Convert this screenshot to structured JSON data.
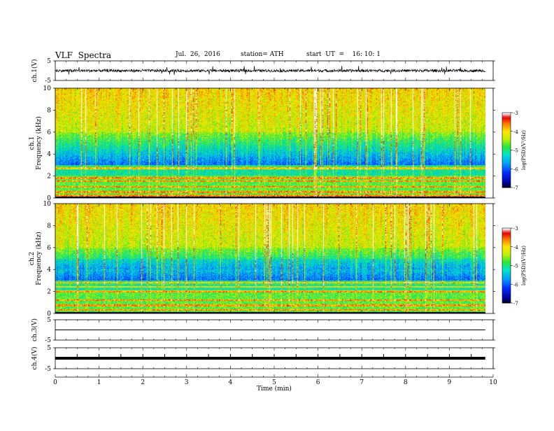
{
  "header": {
    "title": "VLF  Spectra",
    "date": "Jul.  26,  2016",
    "station": "station= ATH",
    "start": "start  UT  =    16: 10: 1"
  },
  "chart_data": [
    {
      "type": "line",
      "panel": "ch.1 waveform",
      "ylabel": "ch.1(V)",
      "ylim": [
        -5,
        5
      ],
      "yticks": [
        "5",
        "-5"
      ],
      "baseline": 0,
      "amplitude_typical": 0.7,
      "spike_amplitude_max": 2.5
    },
    {
      "type": "heatmap",
      "panel": "ch.1 spectrogram",
      "ylabel": "ch.1\nFrequency  (kHz)",
      "ylim": [
        0,
        10
      ],
      "yticks": [
        "0",
        "2",
        "4",
        "6",
        "8",
        "10"
      ],
      "colorbar": {
        "label": "log(PSD)(V²/Hz)",
        "range": [
          -7,
          -3
        ],
        "ticks": [
          "-3",
          "-4",
          "-5",
          "-6",
          "-7"
        ]
      },
      "hum_lines_khz": [
        0.2,
        0.5,
        1.0,
        1.5,
        1.8,
        2.7
      ]
    },
    {
      "type": "heatmap",
      "panel": "ch.2 spectrogram",
      "ylabel": "ch.2\nFrequency  (kHz)",
      "ylim": [
        0,
        10
      ],
      "yticks": [
        "0",
        "2",
        "4",
        "6",
        "8",
        "10"
      ],
      "colorbar": {
        "label": "log(PSD)(V²/Hz)",
        "range": [
          -7,
          -3
        ],
        "ticks": [
          "-3",
          "-4",
          "-5",
          "-6",
          "-7"
        ]
      },
      "hum_lines_khz": [
        0.3,
        0.7,
        1.2,
        2.0,
        2.4,
        2.8
      ]
    },
    {
      "type": "line",
      "panel": "ch.3 waveform",
      "ylabel": "ch.3(V)",
      "ylim": [
        -5,
        5
      ],
      "yticks": [
        "5",
        "-5"
      ],
      "level": 0
    },
    {
      "type": "line",
      "panel": "ch.4 waveform",
      "ylabel": "ch.4(V)",
      "ylim": [
        -5,
        5
      ],
      "yticks": [
        "5",
        "-5"
      ],
      "level": 0,
      "periodic_pulse_min": 0.5
    }
  ],
  "xaxis": {
    "xlabel": "Time  (min)",
    "xlim": [
      0,
      10
    ],
    "ticks": [
      "0",
      "1",
      "2",
      "3",
      "4",
      "5",
      "6",
      "7",
      "8",
      "9",
      "10"
    ],
    "data_end_min": 9.82
  }
}
